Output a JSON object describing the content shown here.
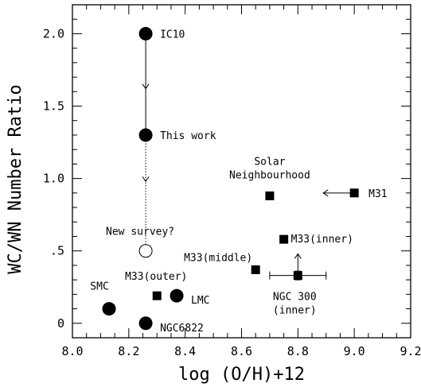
{
  "chart_data": {
    "type": "scatter",
    "xlabel": "log (O/H)+12",
    "ylabel": "WC/WN Number Ratio",
    "xlim": [
      8.0,
      9.2
    ],
    "ylim": [
      -0.1,
      2.2
    ],
    "x_ticks": [
      8.0,
      8.2,
      8.4,
      8.6,
      8.8,
      9.0,
      9.2
    ],
    "x_tick_labels": [
      "8.0",
      "8.2",
      "8.4",
      "8.6",
      "8.8",
      "9.0",
      "9.2"
    ],
    "y_ticks": [
      0,
      0.5,
      1.0,
      1.5,
      2.0
    ],
    "y_tick_labels": [
      "0",
      ".5",
      "1.0",
      "1.5",
      "2.0"
    ],
    "points": [
      {
        "label": "IC10",
        "x": 8.26,
        "y": 2.0,
        "marker": "circle"
      },
      {
        "label": "This work",
        "x": 8.26,
        "y": 1.3,
        "marker": "circle"
      },
      {
        "label": "New survey?",
        "x": 8.26,
        "y": 0.5,
        "marker": "open-circle"
      },
      {
        "label": "SMC",
        "x": 8.13,
        "y": 0.1,
        "marker": "circle"
      },
      {
        "label": "NGC6822",
        "x": 8.26,
        "y": 0.0,
        "marker": "circle"
      },
      {
        "label": "LMC",
        "x": 8.37,
        "y": 0.19,
        "marker": "circle"
      },
      {
        "label": "M33(outer)",
        "x": 8.3,
        "y": 0.19,
        "marker": "square"
      },
      {
        "label": "M33(middle)",
        "x": 8.65,
        "y": 0.37,
        "marker": "square"
      },
      {
        "label": "M33(inner)",
        "x": 8.75,
        "y": 0.58,
        "marker": "square"
      },
      {
        "label": "NGC 300\n(inner)",
        "x": 8.8,
        "y": 0.33,
        "marker": "square",
        "xerr": [
          8.7,
          8.9
        ],
        "yerr": [
          0.3,
          0.36
        ]
      },
      {
        "label": "Solar\nNeighbourhood",
        "x": 8.7,
        "y": 0.88,
        "marker": "square"
      },
      {
        "label": "M31",
        "x": 9.0,
        "y": 0.9,
        "marker": "square"
      }
    ],
    "annotations": {
      "ic10_to_thiswork": {
        "x": 8.26,
        "y_from": 2.0,
        "y_to": 1.3,
        "style": "solid",
        "arrows_at": [
          1.62
        ]
      },
      "thiswork_to_newsurvey": {
        "x": 8.26,
        "y_from": 1.3,
        "y_to": 0.5,
        "style": "dotted",
        "arrows_at": [
          0.98
        ]
      },
      "m31_arrow": {
        "y": 0.9,
        "x_from": 8.99,
        "x_to": 8.89
      },
      "ngc300_arrow": {
        "x": 8.8,
        "y_from": 0.36,
        "y_to": 0.48
      }
    }
  }
}
